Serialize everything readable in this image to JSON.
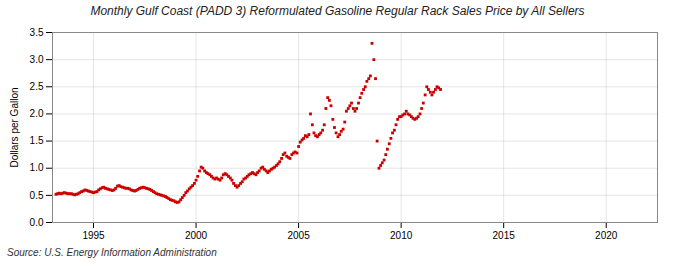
{
  "chart_data": {
    "type": "scatter",
    "title": "Monthly Gulf Coast (PADD 3) Reformulated Gasoline Regular Rack Sales Price by All Sellers",
    "ylabel": "Dollars per Gallon",
    "annotations": [
      "Source: U.S. Energy Information Administration"
    ],
    "color": "#CC0000",
    "marker": "square",
    "grid": true,
    "xlim": [
      1993.0,
      2022.5
    ],
    "ylim": [
      0.0,
      3.5
    ],
    "xticks": [
      1995,
      2000,
      2005,
      2010,
      2015,
      2020
    ],
    "yticks": [
      {
        "value": 0.0,
        "label": "0.0"
      },
      0.5,
      {
        "value": 1.0,
        "label": "1.0"
      },
      1.5,
      {
        "value": 2.0,
        "label": "2.0"
      },
      2.5,
      {
        "value": 3.0,
        "label": "3.0"
      },
      3.5
    ],
    "x": [
      1993.17,
      1993.25,
      1993.33,
      1993.42,
      1993.5,
      1993.58,
      1993.67,
      1993.75,
      1993.83,
      1993.92,
      1994.0,
      1994.08,
      1994.17,
      1994.25,
      1994.33,
      1994.42,
      1994.5,
      1994.58,
      1994.67,
      1994.75,
      1994.83,
      1994.92,
      1995.0,
      1995.08,
      1995.17,
      1995.25,
      1995.33,
      1995.42,
      1995.5,
      1995.58,
      1995.67,
      1995.75,
      1995.83,
      1995.92,
      1996.0,
      1996.08,
      1996.17,
      1996.25,
      1996.33,
      1996.42,
      1996.5,
      1996.58,
      1996.67,
      1996.75,
      1996.83,
      1996.92,
      1997.0,
      1997.08,
      1997.17,
      1997.25,
      1997.33,
      1997.42,
      1997.5,
      1997.58,
      1997.67,
      1997.75,
      1997.83,
      1997.92,
      1998.0,
      1998.08,
      1998.17,
      1998.25,
      1998.33,
      1998.42,
      1998.5,
      1998.58,
      1998.67,
      1998.75,
      1998.83,
      1998.92,
      1999.0,
      1999.08,
      1999.17,
      1999.25,
      1999.33,
      1999.42,
      1999.5,
      1999.58,
      1999.67,
      1999.75,
      1999.83,
      1999.92,
      2000.0,
      2000.08,
      2000.17,
      2000.25,
      2000.33,
      2000.42,
      2000.5,
      2000.58,
      2000.67,
      2000.75,
      2000.83,
      2000.92,
      2001.0,
      2001.08,
      2001.17,
      2001.25,
      2001.33,
      2001.42,
      2001.5,
      2001.58,
      2001.67,
      2001.75,
      2001.83,
      2001.92,
      2002.0,
      2002.08,
      2002.17,
      2002.25,
      2002.33,
      2002.42,
      2002.5,
      2002.58,
      2002.67,
      2002.75,
      2002.83,
      2002.92,
      2003.0,
      2003.08,
      2003.17,
      2003.25,
      2003.33,
      2003.42,
      2003.5,
      2003.58,
      2003.67,
      2003.75,
      2003.83,
      2003.92,
      2004.0,
      2004.08,
      2004.17,
      2004.25,
      2004.33,
      2004.42,
      2004.5,
      2004.58,
      2004.67,
      2004.75,
      2004.83,
      2004.92,
      2005.0,
      2005.08,
      2005.17,
      2005.25,
      2005.33,
      2005.42,
      2005.5,
      2005.58,
      2005.67,
      2005.75,
      2005.83,
      2005.92,
      2006.0,
      2006.08,
      2006.17,
      2006.25,
      2006.33,
      2006.42,
      2006.5,
      2006.58,
      2006.67,
      2006.75,
      2006.83,
      2006.92,
      2007.0,
      2007.08,
      2007.17,
      2007.25,
      2007.33,
      2007.42,
      2007.5,
      2007.58,
      2007.67,
      2007.75,
      2007.83,
      2007.92,
      2008.0,
      2008.08,
      2008.17,
      2008.25,
      2008.33,
      2008.42,
      2008.5,
      2008.58,
      2008.67,
      2008.75,
      2008.83,
      2008.92,
      2009.0,
      2009.08,
      2009.17,
      2009.25,
      2009.33,
      2009.42,
      2009.5,
      2009.58,
      2009.67,
      2009.75,
      2009.83,
      2009.92,
      2010.0,
      2010.08,
      2010.17,
      2010.25,
      2010.33,
      2010.42,
      2010.5,
      2010.58,
      2010.67,
      2010.75,
      2010.83,
      2010.92,
      2011.0,
      2011.08,
      2011.17,
      2011.25,
      2011.33,
      2011.42,
      2011.5,
      2011.58,
      2011.67,
      2011.75,
      2011.83,
      2011.92
    ],
    "values": [
      0.52,
      0.53,
      0.54,
      0.53,
      0.54,
      0.55,
      0.54,
      0.53,
      0.53,
      0.53,
      0.52,
      0.51,
      0.52,
      0.53,
      0.55,
      0.57,
      0.58,
      0.6,
      0.59,
      0.58,
      0.57,
      0.56,
      0.55,
      0.56,
      0.57,
      0.6,
      0.62,
      0.64,
      0.65,
      0.63,
      0.62,
      0.61,
      0.6,
      0.59,
      0.6,
      0.63,
      0.67,
      0.68,
      0.66,
      0.65,
      0.64,
      0.63,
      0.63,
      0.62,
      0.6,
      0.59,
      0.58,
      0.59,
      0.61,
      0.63,
      0.64,
      0.65,
      0.64,
      0.63,
      0.62,
      0.61,
      0.59,
      0.57,
      0.55,
      0.53,
      0.52,
      0.51,
      0.5,
      0.49,
      0.48,
      0.46,
      0.44,
      0.42,
      0.41,
      0.4,
      0.38,
      0.37,
      0.38,
      0.42,
      0.46,
      0.5,
      0.55,
      0.58,
      0.62,
      0.65,
      0.68,
      0.72,
      0.78,
      0.85,
      0.95,
      1.02,
      1.0,
      0.95,
      0.92,
      0.9,
      0.88,
      0.85,
      0.82,
      0.8,
      0.82,
      0.8,
      0.78,
      0.82,
      0.88,
      0.9,
      0.88,
      0.85,
      0.82,
      0.78,
      0.72,
      0.68,
      0.65,
      0.68,
      0.72,
      0.75,
      0.8,
      0.82,
      0.85,
      0.88,
      0.9,
      0.92,
      0.9,
      0.88,
      0.92,
      0.95,
      1.0,
      1.02,
      0.98,
      0.95,
      0.92,
      0.95,
      0.98,
      1.0,
      1.02,
      1.05,
      1.08,
      1.12,
      1.18,
      1.25,
      1.28,
      1.22,
      1.2,
      1.18,
      1.25,
      1.28,
      1.3,
      1.28,
      1.4,
      1.48,
      1.52,
      1.55,
      1.6,
      1.58,
      1.62,
      2.0,
      1.8,
      1.65,
      1.6,
      1.58,
      1.62,
      1.65,
      1.7,
      1.8,
      2.1,
      2.3,
      2.25,
      2.15,
      1.9,
      1.75,
      1.65,
      1.58,
      1.62,
      1.68,
      1.72,
      1.85,
      2.05,
      2.1,
      2.15,
      2.2,
      2.1,
      2.05,
      2.1,
      2.2,
      2.3,
      2.38,
      2.45,
      2.5,
      2.6,
      2.65,
      2.7,
      3.3,
      3.0,
      2.65,
      1.5,
      1.0,
      1.05,
      1.1,
      1.15,
      1.25,
      1.35,
      1.45,
      1.55,
      1.65,
      1.7,
      1.8,
      1.9,
      1.95,
      1.95,
      1.98,
      2.0,
      2.05,
      2.0,
      1.98,
      1.95,
      1.92,
      1.9,
      1.92,
      1.95,
      2.0,
      2.1,
      2.2,
      2.35,
      2.5,
      2.45,
      2.4,
      2.35,
      2.4,
      2.45,
      2.5,
      2.48,
      2.45
    ]
  }
}
